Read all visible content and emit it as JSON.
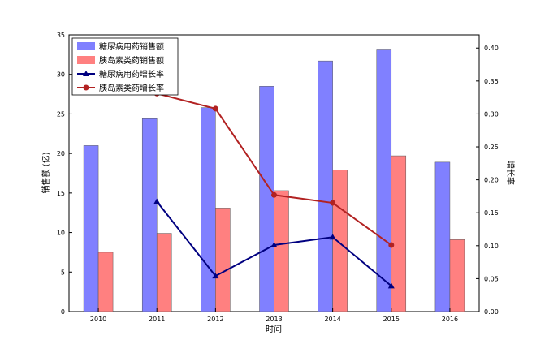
{
  "chart_data": {
    "type": "bar",
    "categories": [
      "2010",
      "2011",
      "2012",
      "2013",
      "2014",
      "2015",
      "2016"
    ],
    "xlabel": "时间",
    "ylabel": "销售额 (亿)",
    "y2label": "增长率",
    "ylim": [
      0,
      35
    ],
    "yticks": [
      "0",
      "5",
      "10",
      "15",
      "20",
      "25",
      "30",
      "35"
    ],
    "y2lim": [
      0,
      0.42
    ],
    "y2ticks": [
      "0.00",
      "0.05",
      "0.10",
      "0.15",
      "0.20",
      "0.25",
      "0.30",
      "0.35",
      "0.40"
    ],
    "grid": false,
    "legend_position": "top-left",
    "bar_series": [
      {
        "name": "糖尿病用药销售额",
        "color": "#8080ff",
        "values": [
          21.0,
          24.4,
          25.8,
          28.5,
          31.7,
          33.1,
          18.9
        ]
      },
      {
        "name": "胰岛素类药销售额",
        "color": "#ff8080",
        "values": [
          7.5,
          9.9,
          13.1,
          15.3,
          17.9,
          19.7,
          9.1
        ]
      }
    ],
    "line_series": [
      {
        "name": "糖尿病用药增长率",
        "color": "#000080",
        "marker": "triangle",
        "values": [
          null,
          0.167,
          0.054,
          0.101,
          0.113,
          0.039,
          null
        ]
      },
      {
        "name": "胰岛素类药增长率",
        "color": "#b22222",
        "marker": "circle",
        "values": [
          null,
          0.331,
          0.308,
          0.177,
          0.165,
          0.101,
          null
        ]
      }
    ]
  }
}
